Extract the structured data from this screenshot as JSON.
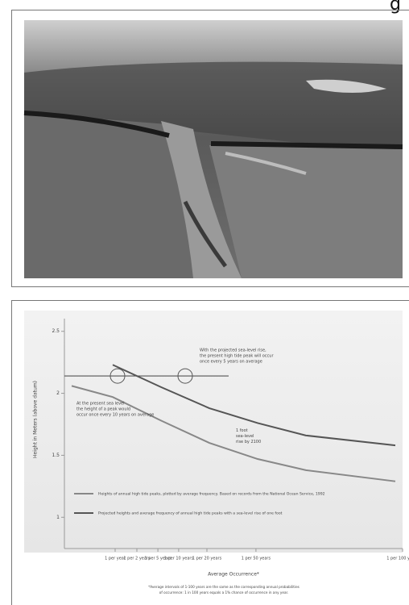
{
  "header_fragment": "g",
  "chart_data": {
    "type": "line",
    "y_label": "Height in Meters (above datum)",
    "x_label": "Average Occurrence*",
    "xlim": [
      0,
      14
    ],
    "ylim": [
      0.8,
      2.7
    ],
    "yticks": [
      1.0,
      1.5,
      2.0,
      2.5
    ],
    "xticks": [
      {
        "value": 2.1,
        "label": "1 per year"
      },
      {
        "value": 3.0,
        "label": "1 per 2 years"
      },
      {
        "value": 3.87,
        "label": "1 per 5 years"
      },
      {
        "value": 4.73,
        "label": "1 per 10 years"
      },
      {
        "value": 5.9,
        "label": "1 per 20 years"
      },
      {
        "value": 7.93,
        "label": "1 per 50 years"
      },
      {
        "value": 14,
        "label": "1 per 100 years"
      }
    ],
    "series": [
      {
        "name": "Projected heights and average frequency of annual high tide peaks with a sea-level rise of one foot",
        "color": "#555555",
        "x": [
          2,
          4,
          6,
          8,
          10,
          13.7
        ],
        "values": [
          2.23,
          2.05,
          1.88,
          1.76,
          1.66,
          1.58
        ]
      },
      {
        "name": "Heights of annual high tide peaks, plotted by average frequency. Based on records from the National Ocean Service, 1992",
        "color": "#888888",
        "x": [
          0.3,
          2,
          4,
          6,
          8,
          10,
          13.7
        ],
        "values": [
          2.06,
          1.97,
          1.78,
          1.6,
          1.47,
          1.38,
          1.29
        ]
      }
    ],
    "threshold": {
      "y": 2.14,
      "x": [
        0,
        6.8
      ]
    },
    "annotations": [
      {
        "text": [
          "With the projected sea-level rise,",
          "the present high tide peak will occur",
          "once every 5 years on average"
        ],
        "x": 5.6,
        "y": 2.35
      },
      {
        "text": [
          "At the present sea level",
          "the height of a peak would",
          "occur once every 10 years on average"
        ],
        "x": 0.5,
        "y": 1.92
      },
      {
        "text": [
          "1 foot",
          "sea-level",
          "rise by 2100"
        ],
        "x": 7.1,
        "y": 1.7
      }
    ],
    "footnote": [
      "*Average intervals of 1-100 years are the same as the corresponding annual probabilities",
      "of occurrence: 1 in 100 years equals a 1% chance of occurrence in any year."
    ]
  }
}
